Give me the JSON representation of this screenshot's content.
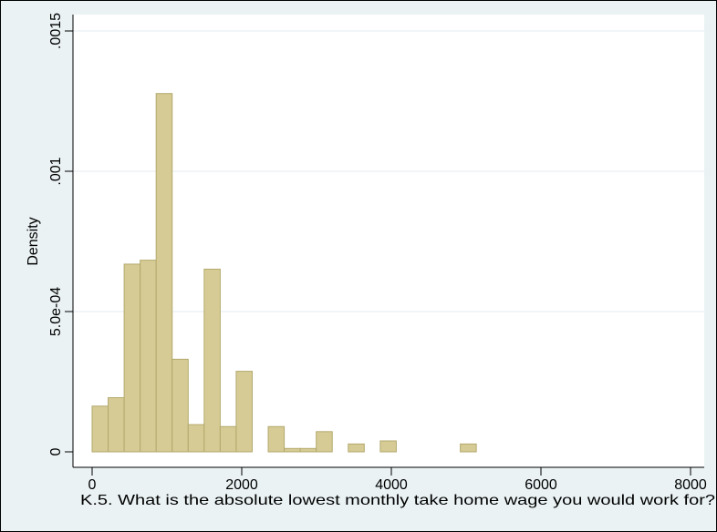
{
  "chart_data": {
    "type": "bar",
    "xlabel": "K.5. What is the absolute lowest monthly take home wage you would work for?",
    "ylabel": "Density",
    "xlim": [
      0,
      8000
    ],
    "ylim": [
      0,
      0.0015
    ],
    "grid": true,
    "x_ticks": [
      {
        "value": 0,
        "label": "0"
      },
      {
        "value": 2000,
        "label": "2000"
      },
      {
        "value": 4000,
        "label": "4000"
      },
      {
        "value": 6000,
        "label": "6000"
      },
      {
        "value": 8000,
        "label": "8000"
      }
    ],
    "y_ticks": [
      {
        "value": 0,
        "label": "0"
      },
      {
        "value": 0.0005,
        "label": "5.0e-04"
      },
      {
        "value": 0.001,
        "label": ".001"
      },
      {
        "value": 0.0015,
        "label": ".0015"
      }
    ],
    "bin_width": 214,
    "bars": [
      {
        "x0": 0,
        "value": 0.000163
      },
      {
        "x0": 214,
        "value": 0.000193
      },
      {
        "x0": 428,
        "value": 0.000669
      },
      {
        "x0": 642,
        "value": 0.000683
      },
      {
        "x0": 856,
        "value": 0.001277
      },
      {
        "x0": 1070,
        "value": 0.00033
      },
      {
        "x0": 1284,
        "value": 9.7e-05
      },
      {
        "x0": 1498,
        "value": 0.000651
      },
      {
        "x0": 1712,
        "value": 9e-05
      },
      {
        "x0": 1926,
        "value": 0.000287
      },
      {
        "x0": 2354,
        "value": 9e-05
      },
      {
        "x0": 2568,
        "value": 1.2e-05
      },
      {
        "x0": 2782,
        "value": 1.2e-05
      },
      {
        "x0": 2996,
        "value": 7.2e-05
      },
      {
        "x0": 3424,
        "value": 2.8e-05
      },
      {
        "x0": 3852,
        "value": 3.9e-05
      },
      {
        "x0": 4922,
        "value": 2.8e-05
      }
    ],
    "colors": {
      "bar_fill": "#d6cb94",
      "bar_stroke": "#b3a96d",
      "grid": "#e6ebf0",
      "plot_bg": "#ffffff",
      "outer_bg": "#eaf2f3"
    }
  }
}
